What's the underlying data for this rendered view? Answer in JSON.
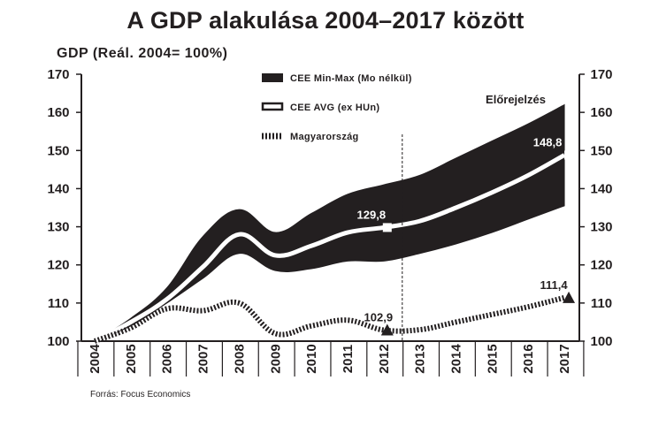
{
  "chart_data": {
    "type": "area",
    "title": "A GDP alakulása 2004–2017 között",
    "ylabel": "GDP (Reál. 2004= 100%)",
    "xlabel": "",
    "categories": [
      "2004",
      "2005",
      "2006",
      "2007",
      "2008",
      "2009",
      "2010",
      "2011",
      "2012",
      "2013",
      "2014",
      "2015",
      "2016",
      "2017"
    ],
    "ylim": [
      100,
      170
    ],
    "yticks": [
      100,
      110,
      120,
      130,
      140,
      150,
      160,
      170
    ],
    "dual_y_axis": true,
    "grid": false,
    "forecast_start_label": "Előrejelzés",
    "series": [
      {
        "name": "CEE Min-Max (Mo nélkül)",
        "style": "band",
        "color": "#231f20",
        "min": [
          100,
          104,
          110,
          116.5,
          123,
          118.5,
          119,
          121,
          121,
          123,
          125.5,
          128.5,
          132,
          135.5
        ],
        "max": [
          100,
          106,
          114,
          127.5,
          134.5,
          128.5,
          133.5,
          138.5,
          141,
          143.5,
          148,
          152.5,
          157,
          162
        ]
      },
      {
        "name": "CEE AVG (ex HUn)",
        "style": "line",
        "color": "#ffffff",
        "values": [
          100,
          105,
          111,
          119.5,
          128,
          122.5,
          125,
          128.5,
          129.8,
          131.5,
          135,
          139,
          143.5,
          148.8
        ]
      },
      {
        "name": "Magyarország",
        "style": "dashed-line",
        "color": "#231f20",
        "values": [
          100,
          103.5,
          108.5,
          108,
          110,
          102,
          104,
          105.5,
          102.9,
          103,
          105,
          107,
          109,
          111.4
        ]
      }
    ],
    "annotations": [
      {
        "series": "CEE AVG (ex HUn)",
        "x": "2012",
        "y": 129.8,
        "label": "129,8"
      },
      {
        "series": "CEE AVG (ex HUn)",
        "x": "2017",
        "y": 148.8,
        "label": "148,8"
      },
      {
        "series": "Magyarország",
        "x": "2012",
        "y": 102.9,
        "label": "102,9"
      },
      {
        "series": "Magyarország",
        "x": "2017",
        "y": 111.4,
        "label": "111,4"
      }
    ],
    "legend_position": "top-center"
  },
  "source": "Forrás: Focus Economics"
}
